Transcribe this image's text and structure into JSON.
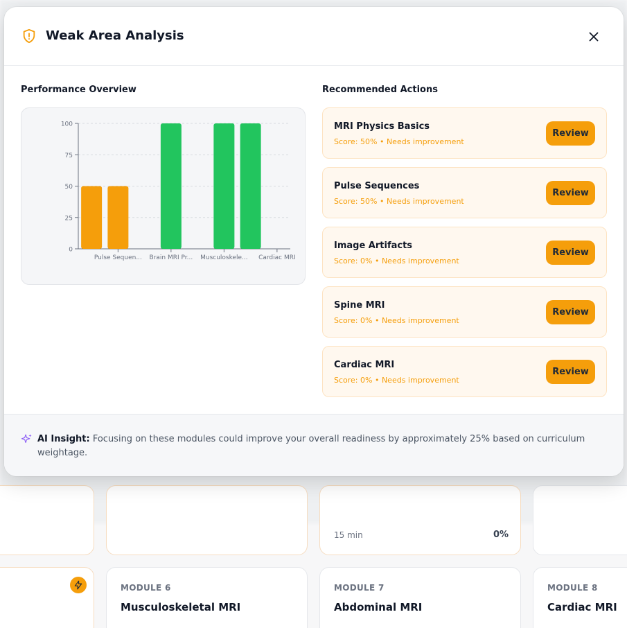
{
  "modal": {
    "title": "Weak Area Analysis",
    "performance_title": "Performance Overview",
    "actions_title": "Recommended Actions",
    "insight_label": "AI Insight:",
    "insight_text": "Focusing on these modules could improve your overall readiness by approximately 25% based on curriculum weightage."
  },
  "actions": [
    {
      "name": "MRI Physics Basics",
      "score": "Score: 50% • Needs improvement",
      "button": "Review"
    },
    {
      "name": "Pulse Sequences",
      "score": "Score: 50% • Needs improvement",
      "button": "Review"
    },
    {
      "name": "Image Artifacts",
      "score": "Score: 0% • Needs improvement",
      "button": "Review"
    },
    {
      "name": "Spine MRI",
      "score": "Score: 0% • Needs improvement",
      "button": "Review"
    },
    {
      "name": "Cardiac MRI",
      "score": "Score: 0% • Needs improvement",
      "button": "Review"
    }
  ],
  "chart_data": {
    "type": "bar",
    "categories": [
      "",
      "Pulse Sequen...",
      "",
      "Brain MRI Pr...",
      "",
      "Musculoskele...",
      "",
      "Cardiac MRI"
    ],
    "values": [
      50,
      50,
      null,
      100,
      null,
      100,
      100,
      null
    ],
    "colors": [
      "#f59e0b",
      "#f59e0b",
      null,
      "#22c55e",
      null,
      "#22c55e",
      "#22c55e",
      null
    ],
    "yticks": [
      0,
      25,
      50,
      75,
      100
    ],
    "ylim": [
      0,
      100
    ],
    "grid": true
  },
  "background": {
    "cards_top": [
      {
        "meta": "15 min",
        "percent": "0%"
      }
    ],
    "cards_bottom": [
      {
        "label": "MODULE 6",
        "title": "Musculoskeletal MRI"
      },
      {
        "label": "MODULE 7",
        "title": "Abdominal MRI"
      },
      {
        "label": "MODULE 8",
        "title": "Cardiac MRI"
      }
    ]
  },
  "colors": {
    "accent": "#f59e0b",
    "success": "#22c55e"
  }
}
